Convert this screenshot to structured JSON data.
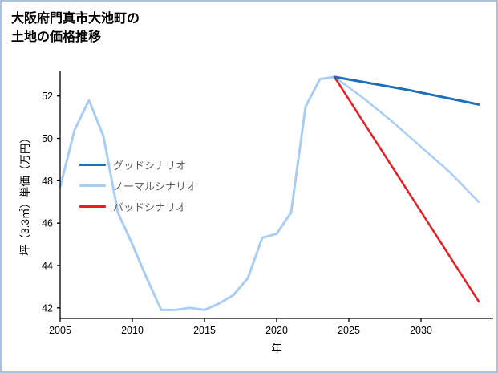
{
  "page": {
    "title_lines": [
      "大阪府門真市大池町の",
      "土地の価格推移"
    ],
    "border_color": "#aac4de"
  },
  "chart_data": {
    "type": "line",
    "title": "大阪府門真市大池町の土地の価格推移",
    "xlabel": "年",
    "ylabel": "坪（3.3㎡）単価（万円）",
    "xlim": [
      2005,
      2035
    ],
    "ylim": [
      41.5,
      53.2
    ],
    "xticks": [
      2005,
      2010,
      2015,
      2020,
      2025,
      2030
    ],
    "yticks": [
      42,
      44,
      46,
      48,
      50,
      52
    ],
    "grid": false,
    "legend_position": "center-left",
    "legend": [
      {
        "label": "グッドシナリオ",
        "series": "good"
      },
      {
        "label": "ノーマルシナリオ",
        "series": "normal"
      },
      {
        "label": "バッドシナリオ",
        "series": "bad"
      }
    ],
    "series": [
      {
        "name": "history",
        "color": "#a9cdf4",
        "line_width": 3,
        "x": [
          2005,
          2006,
          2007,
          2008,
          2009,
          2010,
          2011,
          2012,
          2013,
          2014,
          2015,
          2016,
          2017,
          2018,
          2019,
          2020,
          2021,
          2022,
          2023,
          2024
        ],
        "y": [
          47.7,
          50.4,
          51.8,
          50.1,
          46.5,
          45.0,
          43.4,
          41.9,
          41.9,
          42.0,
          41.9,
          42.2,
          42.6,
          43.4,
          45.3,
          45.5,
          46.5,
          51.5,
          52.8,
          52.9
        ]
      },
      {
        "name": "normal",
        "color": "#a9cdf4",
        "line_width": 2.5,
        "x": [
          2024,
          2026,
          2028,
          2030,
          2032,
          2034
        ],
        "y": [
          52.9,
          51.9,
          50.8,
          49.6,
          48.4,
          47.0
        ]
      },
      {
        "name": "bad",
        "color": "#ec1c24",
        "line_width": 2.5,
        "x": [
          2024,
          2029,
          2034
        ],
        "y": [
          52.9,
          47.6,
          42.3
        ]
      },
      {
        "name": "good",
        "color": "#1c6fb8",
        "line_width": 3,
        "x": [
          2024,
          2029,
          2034
        ],
        "y": [
          52.9,
          52.3,
          51.6
        ]
      }
    ]
  }
}
